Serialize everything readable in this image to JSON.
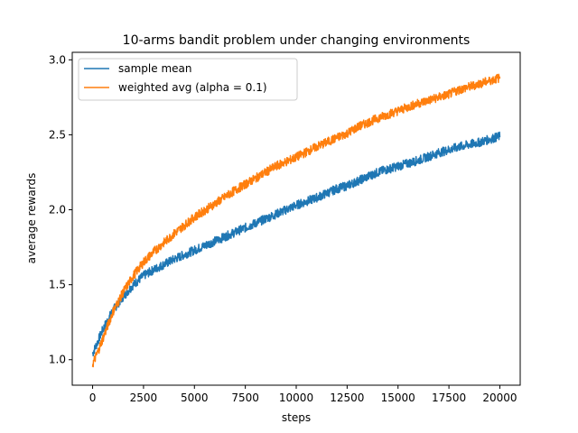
{
  "chart_data": {
    "type": "line",
    "title": "10-arms bandit problem under changing environments",
    "xlabel": "steps",
    "ylabel": "average rewards",
    "xlim": [
      -1000,
      21000
    ],
    "ylim": [
      0.83,
      3.05
    ],
    "xticks": [
      0,
      2500,
      5000,
      7500,
      10000,
      12500,
      15000,
      17500,
      20000
    ],
    "yticks": [
      1.0,
      1.5,
      2.0,
      2.5,
      3.0
    ],
    "xtick_labels": [
      "0",
      "2500",
      "5000",
      "7500",
      "10000",
      "12500",
      "15000",
      "17500",
      "20000"
    ],
    "ytick_labels": [
      "1.0",
      "1.5",
      "2.0",
      "2.5",
      "3.0"
    ],
    "grid": false,
    "legend": {
      "placement": "top-left"
    },
    "series": [
      {
        "name": "sample mean",
        "color": "#1f77b4",
        "noise_band": 0.06,
        "x": [
          0,
          250,
          500,
          1000,
          1500,
          2000,
          2500,
          3000,
          4000,
          5000,
          6000,
          7000,
          7500,
          8000,
          9000,
          10000,
          11000,
          12000,
          12500,
          13000,
          14000,
          15000,
          16000,
          17000,
          17500,
          18000,
          19000,
          20000
        ],
        "values": [
          1.04,
          1.12,
          1.2,
          1.33,
          1.42,
          1.5,
          1.56,
          1.6,
          1.67,
          1.73,
          1.79,
          1.85,
          1.88,
          1.91,
          1.97,
          2.03,
          2.08,
          2.14,
          2.16,
          2.19,
          2.25,
          2.29,
          2.33,
          2.38,
          2.4,
          2.42,
          2.45,
          2.49
        ]
      },
      {
        "name": "weighted avg (alpha = 0.1)",
        "color": "#ff7f0e",
        "noise_band": 0.06,
        "x": [
          0,
          250,
          500,
          1000,
          1500,
          2000,
          2500,
          3000,
          4000,
          5000,
          6000,
          7000,
          7500,
          8000,
          9000,
          10000,
          11000,
          12000,
          12500,
          13000,
          14000,
          15000,
          16000,
          17000,
          17500,
          18000,
          19000,
          20000
        ],
        "values": [
          0.97,
          1.05,
          1.14,
          1.32,
          1.45,
          1.56,
          1.65,
          1.72,
          1.84,
          1.95,
          2.04,
          2.13,
          2.17,
          2.21,
          2.29,
          2.35,
          2.42,
          2.48,
          2.51,
          2.55,
          2.61,
          2.66,
          2.71,
          2.75,
          2.77,
          2.8,
          2.84,
          2.88
        ]
      }
    ]
  }
}
